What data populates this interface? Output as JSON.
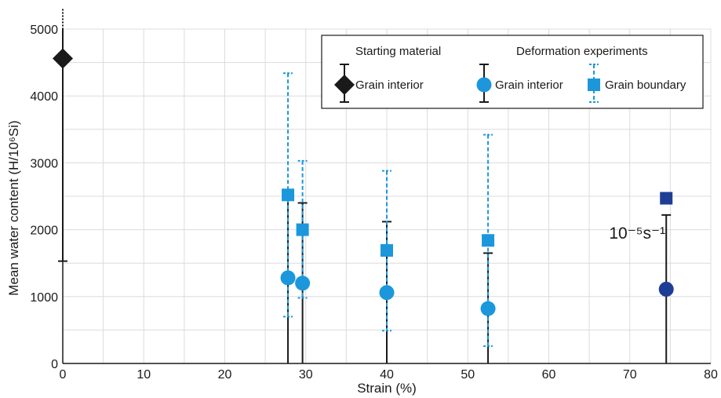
{
  "chart_data": {
    "type": "scatter",
    "title": "",
    "xlabel": "Strain (%)",
    "ylabel": "Mean water content (H/10⁶Si)",
    "xlim": [
      0,
      80
    ],
    "ylim": [
      0,
      5000
    ],
    "xticks": [
      0,
      10,
      20,
      30,
      40,
      50,
      60,
      70,
      80
    ],
    "yticks": [
      0,
      1000,
      2000,
      3000,
      4000,
      5000
    ],
    "grid": true,
    "legend_position": "top-right",
    "legend": {
      "group_starting": "Starting material",
      "group_deformation": "Deformation experiments",
      "items": [
        {
          "label": "Grain interior",
          "marker": "diamond",
          "color": "#1a1a1a",
          "errorbar": "solid-black"
        },
        {
          "label": "Grain interior",
          "marker": "circle",
          "color": "#1c97dc",
          "errorbar": "solid-black"
        },
        {
          "label": "Grain boundary",
          "marker": "square",
          "color": "#1c97dc",
          "errorbar": "dashed-blue"
        }
      ]
    },
    "series": [
      {
        "name": "Starting material — Grain interior",
        "marker": "diamond",
        "color": "#1a1a1a",
        "error_style": "solid-black",
        "points": [
          {
            "x": 0,
            "y": 4560,
            "err_low": 1530,
            "err_high": 5300
          }
        ]
      },
      {
        "name": "Deformation experiments — Grain interior",
        "marker": "circle",
        "color": "#1c97dc",
        "error_style": "solid-black",
        "points": [
          {
            "x": 27.8,
            "y": 1280,
            "err_low": 0,
            "err_high": 2500
          },
          {
            "x": 29.6,
            "y": 1200,
            "err_low": 0,
            "err_high": 2400
          },
          {
            "x": 40,
            "y": 1060,
            "err_low": 0,
            "err_high": 2120
          },
          {
            "x": 52.5,
            "y": 820,
            "err_low": 0,
            "err_high": 1650
          }
        ]
      },
      {
        "name": "Deformation experiments — Grain boundary",
        "marker": "square",
        "color": "#1c97dc",
        "error_style": "dashed-blue",
        "points": [
          {
            "x": 27.8,
            "y": 2520,
            "err_low": 700,
            "err_high": 4340
          },
          {
            "x": 29.6,
            "y": 2000,
            "err_low": 980,
            "err_high": 3030
          },
          {
            "x": 40,
            "y": 1690,
            "err_low": 490,
            "err_high": 2880
          },
          {
            "x": 52.5,
            "y": 1840,
            "err_low": 260,
            "err_high": 3420
          }
        ]
      },
      {
        "name": "10⁻⁵s⁻¹ — Grain interior",
        "marker": "circle",
        "color": "#1e3e96",
        "error_style": "solid-black",
        "points": [
          {
            "x": 74.5,
            "y": 1110,
            "err_low": 0,
            "err_high": 2220
          }
        ]
      },
      {
        "name": "10⁻⁵s⁻¹ — Grain boundary",
        "marker": "square",
        "color": "#1e3e96",
        "error_style": "none",
        "points": [
          {
            "x": 74.5,
            "y": 2470
          }
        ]
      }
    ],
    "annotations": [
      {
        "text": "10⁻⁵s⁻¹",
        "x": 71.5,
        "y": 1960
      }
    ]
  }
}
